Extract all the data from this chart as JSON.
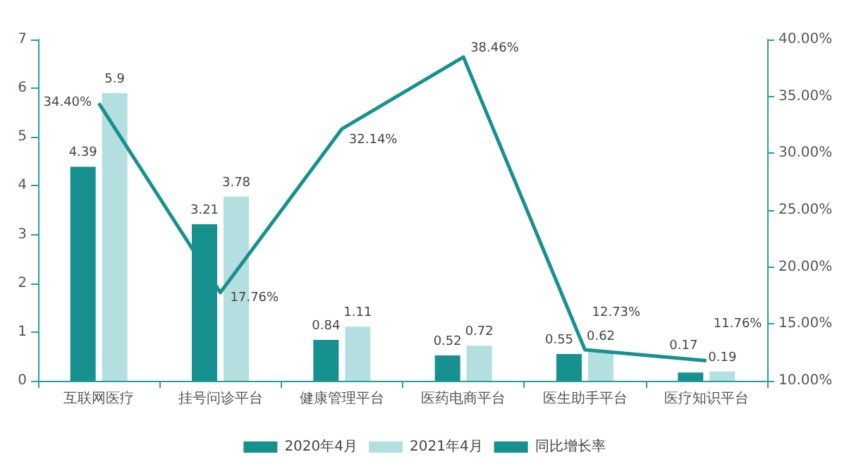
{
  "chart_data": {
    "type": "bar",
    "categories": [
      "互联网医疗",
      "挂号问诊平台",
      "健康管理平台",
      "医药电商平台",
      "医生助手平台",
      "医疗知识平台"
    ],
    "series": [
      {
        "name": "2020年4月",
        "color": "#17918f",
        "values": [
          4.39,
          3.21,
          0.84,
          0.52,
          0.55,
          0.17
        ]
      },
      {
        "name": "2021年4月",
        "color": "#b3dfe0",
        "values": [
          5.9,
          3.78,
          1.11,
          0.72,
          0.62,
          0.19
        ]
      },
      {
        "name": "同比增长率",
        "type": "line",
        "axis": "y2",
        "color": "#17918f",
        "values": [
          34.4,
          17.76,
          32.14,
          38.46,
          12.73,
          11.76
        ],
        "value_labels": [
          "34.40%",
          "17.76%",
          "32.14%",
          "38.46%",
          "12.73%",
          "11.76%"
        ]
      }
    ],
    "ylim": [
      0,
      7
    ],
    "yticks": [
      0,
      1,
      2,
      3,
      4,
      5,
      6,
      7
    ],
    "y2lim": [
      10,
      40
    ],
    "y2ticks": [
      {
        "value": 10,
        "label": "10.00%"
      },
      {
        "value": 15,
        "label": "15.00%"
      },
      {
        "value": 20,
        "label": "20.00%"
      },
      {
        "value": 25,
        "label": "25.00%"
      },
      {
        "value": 30,
        "label": "30.00%"
      },
      {
        "value": 35,
        "label": "35.00%"
      },
      {
        "value": 40,
        "label": "40.00%"
      }
    ],
    "data_labels": true,
    "grid": false,
    "legend": "bottom",
    "marker": "none",
    "line_style": "solid"
  }
}
